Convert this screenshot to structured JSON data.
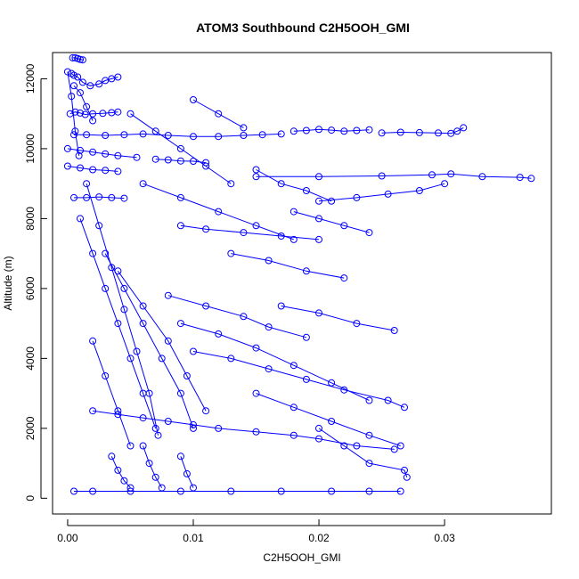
{
  "chart_data": {
    "type": "scatter",
    "title": "ATOM3 Southbound C2H5OOH_GMI",
    "xlabel": "C2H5OOH_GMI",
    "ylabel": "Altitude (m)",
    "xlim": [
      -0.0012,
      0.0385
    ],
    "ylim": [
      -450,
      12750
    ],
    "x_ticks": [
      0.0,
      0.01,
      0.02,
      0.03
    ],
    "x_tick_labels": [
      "0.00",
      "0.01",
      "0.02",
      "0.03"
    ],
    "y_ticks": [
      0,
      2000,
      4000,
      6000,
      8000,
      10000,
      12000
    ],
    "y_tick_labels": [
      "0",
      "2000",
      "4000",
      "6000",
      "8000",
      "10000",
      "12000"
    ],
    "grid": false,
    "legend": "none",
    "series_color": "#0000ff",
    "series": [
      {
        "x": [
          0.0003,
          0.0005,
          0.0008,
          0.0012,
          0.0018,
          0.0025,
          0.003,
          0.0035,
          0.004
        ],
        "y": [
          12150,
          12100,
          12050,
          11900,
          11800,
          11850,
          11950,
          12000,
          12050
        ]
      },
      {
        "x": [
          0.0004,
          0.0006,
          0.0008,
          0.001,
          0.0012
        ],
        "y": [
          12600,
          12600,
          12580,
          12550,
          12540
        ]
      },
      {
        "x": [
          0.0002,
          0.0006,
          0.001,
          0.0014,
          0.002,
          0.0028,
          0.0035,
          0.004
        ],
        "y": [
          11000,
          11050,
          11020,
          10980,
          11000,
          11010,
          11030,
          11050
        ]
      },
      {
        "x": [
          0.0005,
          0.0015,
          0.003,
          0.0045,
          0.006,
          0.008,
          0.01,
          0.012,
          0.014,
          0.0155,
          0.017
        ],
        "y": [
          10400,
          10400,
          10380,
          10400,
          10420,
          10380,
          10350,
          10350,
          10380,
          10400,
          10420
        ]
      },
      {
        "x": [
          0.018,
          0.019,
          0.02,
          0.021,
          0.022,
          0.023,
          0.024
        ],
        "y": [
          10500,
          10520,
          10550,
          10530,
          10500,
          10520,
          10540
        ]
      },
      {
        "x": [
          0.025,
          0.0265,
          0.028,
          0.0295,
          0.0305,
          0.031,
          0.0315
        ],
        "y": [
          10450,
          10470,
          10460,
          10450,
          10440,
          10500,
          10600
        ]
      },
      {
        "x": [
          0.0,
          0.001,
          0.002,
          0.003,
          0.004,
          0.0055
        ],
        "y": [
          10000,
          9950,
          9900,
          9850,
          9800,
          9750
        ]
      },
      {
        "x": [
          0.007,
          0.008,
          0.009,
          0.01,
          0.011
        ],
        "y": [
          9700,
          9680,
          9650,
          9640,
          9600
        ]
      },
      {
        "x": [
          0.0,
          0.001,
          0.002,
          0.003,
          0.004
        ],
        "y": [
          9500,
          9450,
          9400,
          9380,
          9350
        ]
      },
      {
        "x": [
          0.015,
          0.02,
          0.025,
          0.029,
          0.0305,
          0.033,
          0.036,
          0.0369
        ],
        "y": [
          9200,
          9200,
          9220,
          9250,
          9280,
          9200,
          9180,
          9150
        ]
      },
      {
        "x": [
          0.0005,
          0.0015,
          0.0025,
          0.0035,
          0.0045
        ],
        "y": [
          8600,
          8600,
          8620,
          8600,
          8580
        ]
      },
      {
        "x": [
          0.02,
          0.023,
          0.0255,
          0.028,
          0.03
        ],
        "y": [
          8500,
          8600,
          8700,
          8800,
          9000
        ]
      },
      {
        "x": [
          0.0005,
          0.002,
          0.005,
          0.009,
          0.013,
          0.017,
          0.021,
          0.024,
          0.0265
        ],
        "y": [
          200,
          200,
          200,
          200,
          200,
          200,
          200,
          200,
          200
        ]
      },
      {
        "x": [
          0.002,
          0.004,
          0.006,
          0.008,
          0.01,
          0.012,
          0.015,
          0.018,
          0.02,
          0.023,
          0.026
        ],
        "y": [
          2500,
          2400,
          2300,
          2200,
          2100,
          2000,
          1900,
          1800,
          1700,
          1500,
          1400
        ]
      },
      {
        "x": [
          0.01,
          0.013,
          0.016,
          0.019,
          0.022,
          0.0255,
          0.0268
        ],
        "y": [
          4200,
          4000,
          3700,
          3400,
          3100,
          2800,
          2600
        ]
      },
      {
        "x": [
          0.009,
          0.012,
          0.015,
          0.018,
          0.021,
          0.024
        ],
        "y": [
          5000,
          4700,
          4300,
          3800,
          3300,
          2800
        ]
      },
      {
        "x": [
          0.017,
          0.02,
          0.023,
          0.026
        ],
        "y": [
          5500,
          5300,
          5000,
          4800
        ]
      },
      {
        "x": [
          0.013,
          0.016,
          0.019,
          0.022
        ],
        "y": [
          7000,
          6800,
          6500,
          6300
        ]
      },
      {
        "x": [
          0.009,
          0.011,
          0.014,
          0.017,
          0.02
        ],
        "y": [
          7800,
          7700,
          7600,
          7500,
          7400
        ]
      },
      {
        "x": [
          0.018,
          0.02,
          0.022,
          0.024
        ],
        "y": [
          8200,
          8000,
          7800,
          7600
        ]
      },
      {
        "x": [
          0.01,
          0.012,
          0.014
        ],
        "y": [
          11400,
          11000,
          10600
        ]
      },
      {
        "x": [
          0.015,
          0.018,
          0.021,
          0.024,
          0.0265
        ],
        "y": [
          3000,
          2600,
          2200,
          1800,
          1500
        ]
      },
      {
        "x": [
          0.005,
          0.007,
          0.009,
          0.011,
          0.013
        ],
        "y": [
          11000,
          10500,
          10000,
          9500,
          9000
        ]
      },
      {
        "x": [
          0.006,
          0.009,
          0.012,
          0.015,
          0.018
        ],
        "y": [
          9000,
          8600,
          8200,
          7800,
          7400
        ]
      },
      {
        "x": [
          0.001,
          0.002,
          0.003,
          0.004,
          0.005,
          0.006,
          0.007
        ],
        "y": [
          8000,
          7000,
          6000,
          5000,
          4000,
          3000,
          2000
        ]
      },
      {
        "x": [
          0.0015,
          0.0025,
          0.0035,
          0.0045,
          0.0055,
          0.0065,
          0.0072
        ],
        "y": [
          9000,
          7800,
          6600,
          5400,
          4200,
          3000,
          1800
        ]
      },
      {
        "x": [
          0.003,
          0.0045,
          0.006,
          0.0075,
          0.009,
          0.01
        ],
        "y": [
          7000,
          6000,
          5000,
          4000,
          3000,
          2000
        ]
      },
      {
        "x": [
          0.004,
          0.006,
          0.008,
          0.0095,
          0.011
        ],
        "y": [
          6500,
          5500,
          4500,
          3500,
          2500
        ]
      },
      {
        "x": [
          0.002,
          0.003,
          0.004,
          0.005
        ],
        "y": [
          4500,
          3500,
          2500,
          1500
        ]
      },
      {
        "x": [
          0.0035,
          0.004,
          0.0045,
          0.005
        ],
        "y": [
          1200,
          800,
          500,
          300
        ]
      },
      {
        "x": [
          0.006,
          0.0065,
          0.007,
          0.0075
        ],
        "y": [
          1500,
          1000,
          600,
          300
        ]
      },
      {
        "x": [
          0.009,
          0.0095,
          0.01
        ],
        "y": [
          1200,
          700,
          300
        ]
      },
      {
        "x": [
          0.02,
          0.022,
          0.024,
          0.0268,
          0.027
        ],
        "y": [
          2000,
          1500,
          1000,
          800,
          600
        ]
      },
      {
        "x": [
          0.0005,
          0.001,
          0.0015,
          0.002
        ],
        "y": [
          11800,
          11600,
          11200,
          10800
        ]
      },
      {
        "x": [
          0.0,
          0.0003,
          0.0006,
          0.0009
        ],
        "y": [
          12200,
          11500,
          10500,
          9800
        ]
      },
      {
        "x": [
          0.015,
          0.017,
          0.019,
          0.021
        ],
        "y": [
          9400,
          9000,
          8800,
          8500
        ]
      },
      {
        "x": [
          0.008,
          0.011,
          0.014,
          0.016,
          0.019
        ],
        "y": [
          5800,
          5500,
          5200,
          4900,
          4600
        ]
      }
    ]
  }
}
